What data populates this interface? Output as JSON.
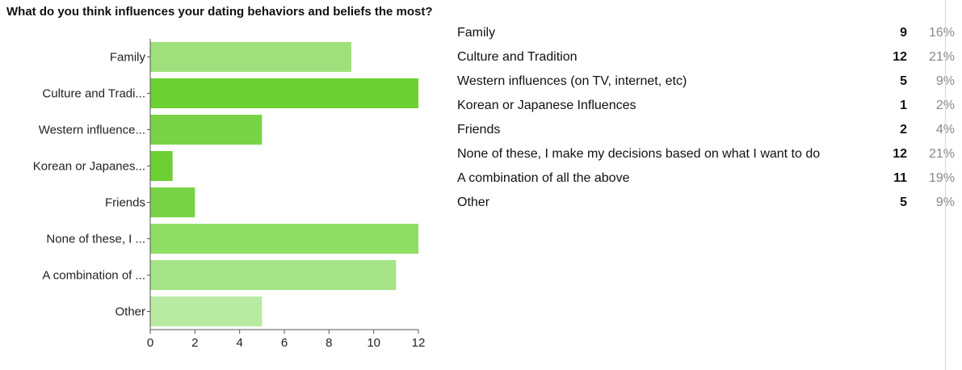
{
  "question": "What do you think influences your dating behaviors and beliefs the most?",
  "chart_data": {
    "type": "bar",
    "orientation": "horizontal",
    "categories": [
      "Family",
      "Culture and Tradi...",
      "Western influence...",
      "Korean or Japanes...",
      "Friends",
      "None of these, I ...",
      "A combination of ...",
      "Other"
    ],
    "values": [
      9,
      12,
      5,
      1,
      2,
      12,
      11,
      5
    ],
    "colors": [
      "#9fe07d",
      "#6ccf33",
      "#78d446",
      "#6ccf33",
      "#78d446",
      "#8ede63",
      "#a6e489",
      "#b9eaa2"
    ],
    "xlim": [
      0,
      12
    ],
    "xticks": [
      0,
      2,
      4,
      6,
      8,
      10,
      12
    ],
    "grid": false
  },
  "summary": [
    {
      "label": "Family",
      "count": "9",
      "percent": "16%"
    },
    {
      "label": "Culture and Tradition",
      "count": "12",
      "percent": "21%"
    },
    {
      "label": "Western influences (on TV, internet, etc)",
      "count": "5",
      "percent": "9%"
    },
    {
      "label": "Korean or Japanese Influences",
      "count": "1",
      "percent": "2%"
    },
    {
      "label": "Friends",
      "count": "2",
      "percent": "4%"
    },
    {
      "label": "None of these, I make my decisions based on what I want to do",
      "count": "12",
      "percent": "21%"
    },
    {
      "label": "A combination of all the above",
      "count": "11",
      "percent": "19%"
    },
    {
      "label": "Other",
      "count": "5",
      "percent": "9%"
    }
  ]
}
